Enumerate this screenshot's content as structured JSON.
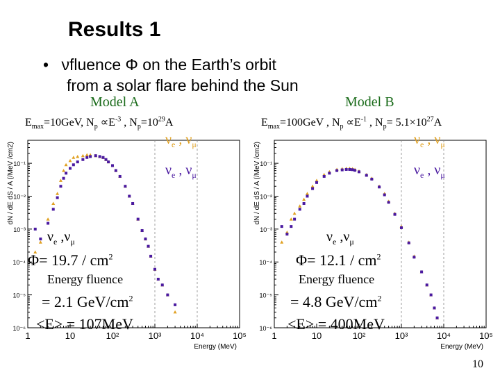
{
  "slide": {
    "title": "Results 1",
    "bullet_marker": "•",
    "bullet_line1": "νfluence Φ on the Earth’s orbit",
    "bullet_line2": "from a solar flare behind the Sun",
    "page_number": "10"
  },
  "models": [
    {
      "name": "Model A",
      "emax_label": "E",
      "emax_sub": "max",
      "emax_value": "=10GeV, N",
      "np_sub": "p",
      "propto": " ∝E",
      "exp": "-3",
      "np_text": " , N",
      "np_sub2": "p",
      "np_value": "=10",
      "np_exp": "29",
      "np_unit": "A",
      "fluence_label": "ν",
      "fluence_sub_e": "e",
      "fluence_sep": " ,ν",
      "fluence_sub_mu": "μ",
      "phi_value": "Φ= 19.7 / cm",
      "phi_exp": "2",
      "energy_fluence_label": "Energy fluence",
      "energy_fluence_value": "= 2.1 GeV/cm",
      "energy_fluence_exp": "2",
      "mean_energy": "<E> = 107MeV"
    },
    {
      "name": "Model B",
      "emax_label": "E",
      "emax_sub": "max",
      "emax_value": "=100GeV , N",
      "np_sub": "p",
      "propto": " ∝E",
      "exp": "-1",
      "np_text": " ,  N",
      "np_sub2": "p",
      "np_value": "= 5.1×10",
      "np_exp": "27",
      "np_unit": "A",
      "fluence_label": "ν",
      "fluence_sub_e": "e",
      "fluence_sep": " ,ν",
      "fluence_sub_mu": "μ",
      "phi_value": "Φ= 12.1 / cm",
      "phi_exp": "2",
      "energy_fluence_label": "Energy fluence",
      "energy_fluence_value": "= 4.8 GeV/cm",
      "energy_fluence_exp": "2",
      "mean_energy": "<E> = 400MeV"
    }
  ],
  "legend": {
    "nu": "ν",
    "e": "e",
    "mu": "μ",
    "sep": " ,  ν"
  },
  "colors": {
    "series_nue": "#e0a020",
    "series_numu": "#4a1aa0",
    "model_title": "#1a6b1a",
    "frame": "#000000"
  },
  "chart_data": [
    {
      "type": "scatter",
      "title": "",
      "xlabel": "Energy (MeV)",
      "ylabel": "dN / dE dS / A (/MeV /cm2)",
      "xscale": "log",
      "yscale": "log",
      "xlim": [
        1,
        100000
      ],
      "ylim": [
        1e-06,
        0.5
      ],
      "x_ticks": [
        "1",
        "10",
        "10²",
        "10³",
        "10⁴",
        "10⁵"
      ],
      "y_ticks": [
        "10⁻⁶",
        "10⁻⁵",
        "10⁻⁴",
        "10⁻³",
        "10⁻²",
        "10⁻¹"
      ],
      "grid": false,
      "legend_position": "top-right",
      "series": [
        {
          "name": "νe , νμ",
          "color": "#e0a020",
          "marker": "triangle",
          "x": [
            1.5,
            2,
            3,
            4,
            5,
            6,
            7,
            8,
            10,
            12,
            15,
            20,
            25,
            30,
            40,
            50,
            60,
            70,
            80,
            100,
            120,
            150,
            200,
            250,
            300,
            400,
            500,
            600,
            700,
            800,
            1000,
            1200,
            1500,
            2000,
            3000
          ],
          "y": [
            0.0002,
            0.0004,
            0.002,
            0.006,
            0.012,
            0.03,
            0.06,
            0.09,
            0.12,
            0.15,
            0.16,
            0.17,
            0.18,
            0.18,
            0.17,
            0.16,
            0.15,
            0.13,
            0.11,
            0.085,
            0.06,
            0.04,
            0.02,
            0.01,
            0.006,
            0.002,
            0.0009,
            0.0005,
            0.0003,
            0.00015,
            6e-05,
            3e-05,
            2e-05,
            1e-05,
            3e-06
          ]
        },
        {
          "name": "νe , νμ",
          "color": "#4a1aa0",
          "marker": "square",
          "x": [
            1.5,
            2,
            3,
            4,
            5,
            6,
            7,
            8,
            10,
            12,
            15,
            20,
            25,
            30,
            40,
            50,
            60,
            70,
            80,
            100,
            120,
            150,
            200,
            250,
            300,
            400,
            500,
            600,
            700,
            800,
            1000,
            1200,
            1500,
            2000,
            3000
          ],
          "y": [
            0.001,
            0.0005,
            0.0015,
            0.004,
            0.009,
            0.02,
            0.035,
            0.05,
            0.07,
            0.09,
            0.11,
            0.13,
            0.15,
            0.16,
            0.17,
            0.16,
            0.15,
            0.13,
            0.11,
            0.085,
            0.06,
            0.04,
            0.02,
            0.01,
            0.006,
            0.002,
            0.0009,
            0.0005,
            0.0003,
            0.00015,
            6e-05,
            3e-05,
            2e-05,
            1e-05,
            5e-06
          ]
        }
      ]
    },
    {
      "type": "scatter",
      "title": "",
      "xlabel": "Energy (MeV)",
      "ylabel": "dN / dE dS / A (/MeV /cm2)",
      "xscale": "log",
      "yscale": "log",
      "xlim": [
        1,
        100000
      ],
      "ylim": [
        1e-06,
        0.5
      ],
      "x_ticks": [
        "1",
        "10",
        "10²",
        "10³",
        "10⁴",
        "10⁵"
      ],
      "y_ticks": [
        "10⁻⁶",
        "10⁻⁵",
        "10⁻⁴",
        "10⁻³",
        "10⁻²",
        "10⁻¹"
      ],
      "grid": false,
      "legend_position": "top-right",
      "series": [
        {
          "name": "νe , νμ",
          "color": "#e0a020",
          "marker": "triangle",
          "x": [
            1.5,
            2,
            2.5,
            3,
            4,
            5,
            6,
            8,
            10,
            15,
            20,
            30,
            40,
            50,
            60,
            70,
            80,
            100,
            150,
            200,
            300,
            400,
            500,
            700,
            1000,
            1500,
            2000,
            3000,
            4000,
            5000,
            6000,
            7000
          ],
          "y": [
            0.0004,
            0.0008,
            0.002,
            0.003,
            0.005,
            0.008,
            0.012,
            0.02,
            0.03,
            0.045,
            0.055,
            0.065,
            0.068,
            0.07,
            0.07,
            0.068,
            0.065,
            0.058,
            0.045,
            0.035,
            0.02,
            0.012,
            0.007,
            0.003,
            0.0012,
            0.0004,
            0.00015,
            5e-05,
            2e-05,
            1e-05,
            4e-06,
            2e-06
          ]
        },
        {
          "name": "νe , νμ",
          "color": "#4a1aa0",
          "marker": "square",
          "x": [
            1.5,
            2,
            2.5,
            3,
            4,
            5,
            6,
            8,
            10,
            15,
            20,
            30,
            40,
            50,
            60,
            70,
            80,
            100,
            150,
            200,
            300,
            400,
            500,
            700,
            1000,
            1500,
            2000,
            3000,
            4000,
            5000,
            6000,
            7000
          ],
          "y": [
            0.0012,
            0.0007,
            0.0012,
            0.002,
            0.004,
            0.006,
            0.01,
            0.017,
            0.026,
            0.04,
            0.05,
            0.06,
            0.063,
            0.065,
            0.065,
            0.064,
            0.061,
            0.055,
            0.043,
            0.033,
            0.019,
            0.011,
            0.0065,
            0.0028,
            0.0011,
            0.00038,
            0.00014,
            5e-05,
            2e-05,
            1e-05,
            4e-06,
            2e-06
          ]
        }
      ]
    }
  ]
}
